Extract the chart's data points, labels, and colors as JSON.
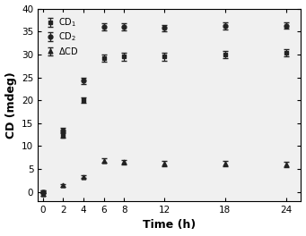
{
  "time": [
    0,
    2,
    4,
    6,
    8,
    12,
    18,
    24
  ],
  "CD1_values": [
    0.0,
    12.3,
    20.0,
    29.2,
    29.5,
    29.5,
    30.0,
    30.3
  ],
  "CD1_errors": [
    0.3,
    0.5,
    0.6,
    0.8,
    0.8,
    0.8,
    0.8,
    0.8
  ],
  "CD2_values": [
    0.0,
    13.5,
    24.3,
    36.0,
    36.0,
    35.8,
    36.2,
    36.3
  ],
  "CD2_errors": [
    0.3,
    0.5,
    0.7,
    0.7,
    0.7,
    0.7,
    0.7,
    0.7
  ],
  "DeltaCD_values": [
    -0.5,
    1.5,
    3.3,
    6.8,
    6.5,
    6.2,
    6.2,
    6.0
  ],
  "DeltaCD_errors": [
    0.3,
    0.3,
    0.3,
    0.5,
    0.5,
    0.5,
    0.5,
    0.5
  ],
  "xlabel": "Time (h)",
  "ylabel": "CD (mdeg)",
  "xlim": [
    -0.5,
    25.5
  ],
  "ylim": [
    -2,
    40
  ],
  "xticks": [
    0,
    2,
    4,
    6,
    8,
    12,
    18,
    24
  ],
  "yticks": [
    0,
    5,
    10,
    15,
    20,
    25,
    30,
    35,
    40
  ],
  "legend_labels": [
    "CD$_1$",
    "CD$_2$",
    "$\\Delta$CD"
  ],
  "marker_CD1": "s",
  "marker_CD2": "o",
  "marker_DeltaCD": "^",
  "color": "#222222",
  "background_color": "#f0f0f0",
  "capsize": 2
}
